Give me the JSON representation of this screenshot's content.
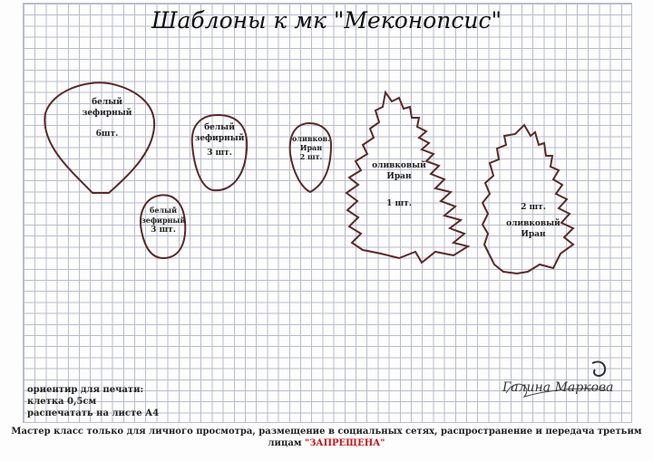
{
  "title": "Шаблоны к мк  \"Меконопсис\"",
  "templates": [
    {
      "line1": "белый",
      "line2": "зефирный",
      "count": "6шт."
    },
    {
      "line1": "белый",
      "line2": "зефирный",
      "count": "3 шт."
    },
    {
      "line1": "оливков.",
      "line2": "Иран",
      "count": "2 шт."
    },
    {
      "line1": "белый",
      "line2": "зефирный",
      "count": "3 шт."
    },
    {
      "line1": "оливковый",
      "line2": "Иран",
      "count": "1 шт."
    },
    {
      "line1": "оливковый",
      "line2": "Иран",
      "count": "2 шт."
    }
  ],
  "print_info": {
    "line1": "ориентир для печати:",
    "line2": "клетка 0,5см",
    "line3": "распечатать на листе А4"
  },
  "notice": {
    "text": "Мастер класс только для личного просмотра, размещение в социальных сетях, распространение и передача третьим лицам ",
    "forbidden": "\"ЗАПРЕЩЕНА\""
  },
  "signature": "Галина Маркова",
  "colors": {
    "outline": "#5a2a28",
    "forbidden": "#c8141c",
    "grid": "#b9bccb"
  }
}
